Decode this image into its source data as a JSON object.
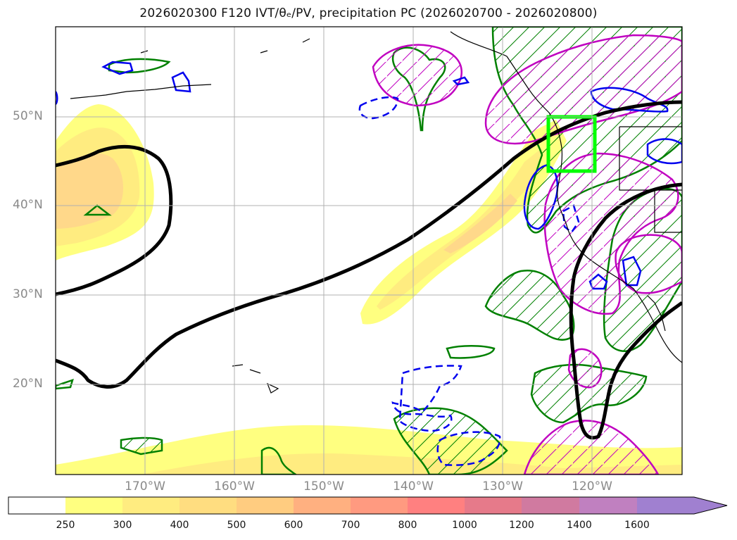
{
  "title": "2026020300 F120 IVT/θₑ/PV, precipitation PC (2026020700 - 2026020800)",
  "map": {
    "lat_labels": [
      "50°N",
      "40°N",
      "30°N",
      "20°N"
    ],
    "lon_labels": [
      "170°W",
      "160°W",
      "150°W",
      "140°W",
      "130°W",
      "120°W"
    ],
    "extent": {
      "lon_min": -180,
      "lon_max": -110,
      "lat_min": 10,
      "lat_max": 60
    },
    "highlight_box": {
      "lon_min": -125,
      "lon_max": -120,
      "lat_min": 44,
      "lat_max": 50,
      "color": "#00ff00"
    }
  },
  "colorbar": {
    "ticks": [
      "250",
      "300",
      "400",
      "500",
      "600",
      "700",
      "800",
      "1000",
      "1200",
      "1400",
      "1600"
    ],
    "colors": [
      "#ffffff",
      "#ffff80",
      "#ffec80",
      "#ffdd80",
      "#ffcc80",
      "#ffb080",
      "#ff9a80",
      "#ff8080",
      "#e67aa0",
      "#c080c0",
      "#a080d0"
    ]
  },
  "colors": {
    "ivt_fill_light": "#ffff80",
    "ivt_fill_mid": "#ffe480",
    "ivt_fill_dark": "#ffcc80",
    "pv_contour": "#000000",
    "theta_e_pos": "#0000ee",
    "precip_green": "#008000",
    "precip_magenta": "#c000c0",
    "box": "#00ff00"
  }
}
